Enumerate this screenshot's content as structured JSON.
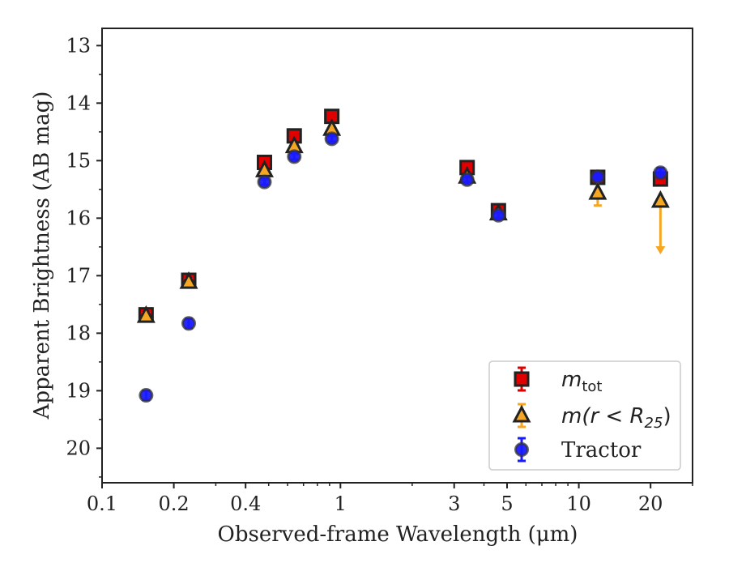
{
  "chart_data": {
    "type": "scatter",
    "xlabel": "Observed-frame Wavelength (μm)",
    "ylabel": "Apparent Brightness (AB mag)",
    "xscale": "log",
    "yscale": "inverted",
    "xlim": [
      0.1,
      30
    ],
    "ylim": [
      20.6,
      12.7
    ],
    "xticks": [
      0.1,
      0.2,
      0.4,
      1,
      3,
      5,
      10,
      20
    ],
    "xtick_labels": [
      "0.1",
      "0.2",
      "0.4",
      "1",
      "3",
      "5",
      "10",
      "20"
    ],
    "yticks": [
      13,
      14,
      15,
      16,
      17,
      18,
      19,
      20
    ],
    "ytick_labels": [
      "13",
      "14",
      "15",
      "16",
      "17",
      "18",
      "19",
      "20"
    ],
    "legend_position": "bottom-right",
    "series": [
      {
        "name_base": "m",
        "name_sub": "tot",
        "marker": "square",
        "color": "#e00000",
        "edge": "#222222",
        "points": [
          {
            "x": 0.153,
            "y": 17.68,
            "err": 0.07
          },
          {
            "x": 0.231,
            "y": 17.08,
            "err": 0.05
          },
          {
            "x": 0.48,
            "y": 15.03,
            "err": 0.02
          },
          {
            "x": 0.64,
            "y": 14.57,
            "err": 0.02
          },
          {
            "x": 0.92,
            "y": 14.23,
            "err": 0.02
          },
          {
            "x": 3.4,
            "y": 15.12,
            "err": 0.03
          },
          {
            "x": 4.6,
            "y": 15.87,
            "err": 0.03
          },
          {
            "x": 12.0,
            "y": 15.29,
            "err": 0.04
          },
          {
            "x": 22.0,
            "y": 15.32,
            "err": 0.05
          }
        ]
      },
      {
        "name_base": "m(r < R",
        "name_sub": "25",
        "name_end": ")",
        "marker": "triangle",
        "color": "#f5a623",
        "edge": "#222222",
        "points": [
          {
            "x": 0.153,
            "y": 17.7,
            "err": 0.05
          },
          {
            "x": 0.231,
            "y": 17.11,
            "err": 0.05
          },
          {
            "x": 0.48,
            "y": 15.17,
            "err": 0.02
          },
          {
            "x": 0.64,
            "y": 14.75,
            "err": 0.02
          },
          {
            "x": 0.92,
            "y": 14.45,
            "err": 0.02
          },
          {
            "x": 3.4,
            "y": 15.28,
            "err": 0.03
          },
          {
            "x": 4.6,
            "y": 15.92,
            "err": 0.03
          },
          {
            "x": 12.0,
            "y": 15.56,
            "err": 0.22
          },
          {
            "x": 22.0,
            "y": 15.7,
            "upper_limit_to": 16.6
          }
        ]
      },
      {
        "name": "Tractor",
        "marker": "circle",
        "color": "#1a1aff",
        "edge": "#333333",
        "points": [
          {
            "x": 0.153,
            "y": 19.08,
            "err": 0.08
          },
          {
            "x": 0.231,
            "y": 17.83,
            "err": 0.08
          },
          {
            "x": 0.48,
            "y": 15.37,
            "err": 0.05
          },
          {
            "x": 0.64,
            "y": 14.93,
            "err": 0.05
          },
          {
            "x": 0.92,
            "y": 14.62,
            "err": 0.05
          },
          {
            "x": 3.4,
            "y": 15.33,
            "err": 0.05
          },
          {
            "x": 4.6,
            "y": 15.95,
            "err": 0.05
          },
          {
            "x": 12.0,
            "y": 15.28,
            "err": 0.05
          },
          {
            "x": 22.0,
            "y": 15.21,
            "err": 0.08
          }
        ]
      }
    ]
  }
}
